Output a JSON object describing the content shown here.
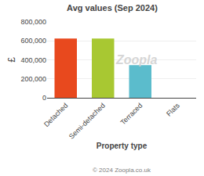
{
  "chart_data": {
    "type": "bar",
    "title": "Avg values (Sep 2024)",
    "categories": [
      "Detached",
      "Semi-detached",
      "Terraced",
      "Flats"
    ],
    "values": [
      625000,
      625000,
      345000,
      0
    ],
    "colors": [
      "#e8491e",
      "#a8c832",
      "#5bbccc",
      "#cccccc"
    ],
    "xlabel": "Property type",
    "ylabel": "£",
    "ylim": [
      0,
      800000
    ],
    "yticks": [
      0,
      {
        "value": 200000,
        "label": "200,000"
      },
      {
        "value": 400000,
        "label": "400,000"
      },
      {
        "value": 600000,
        "label": "600,000"
      },
      {
        "value": 800000,
        "label": "800,000"
      }
    ],
    "grid": true,
    "annotations": [
      "Zoopla",
      "© 2024 Zoopla.co.uk"
    ]
  }
}
